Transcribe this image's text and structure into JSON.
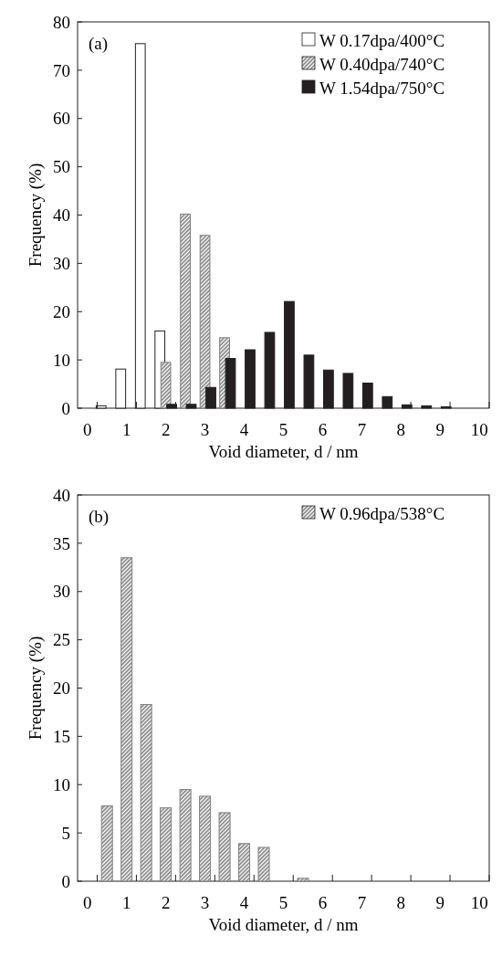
{
  "chart_data": [
    {
      "type": "bar",
      "categories": [
        "0",
        null,
        "1",
        null,
        "2",
        null,
        "3",
        null,
        "4",
        null,
        "5",
        null,
        "6",
        null,
        "7",
        null,
        "8",
        null,
        "9",
        null,
        "10"
      ],
      "xlabel": "Void diameter, d / nm",
      "ylabel": "Frequency (%)",
      "ylim": [
        0,
        80
      ],
      "yticks": [
        0,
        10,
        20,
        30,
        40,
        50,
        60,
        70,
        80
      ],
      "legend": "top right",
      "annotations": [
        "(a)"
      ],
      "series": [
        {
          "name": "W 0.17dpa/400°C",
          "color": "#ffffff",
          "values": [
            null,
            0.5,
            8.1,
            75.5,
            16,
            null,
            null,
            null,
            null,
            null,
            null,
            null,
            null,
            null,
            null,
            null,
            null,
            null,
            null,
            null,
            null
          ]
        },
        {
          "name": "W 0.40dpa/740°C",
          "color": "#808080",
          "values": [
            null,
            null,
            null,
            null,
            9.5,
            40.2,
            35.8,
            14.6,
            null,
            null,
            null,
            null,
            null,
            null,
            null,
            null,
            null,
            null,
            null,
            null,
            null
          ]
        },
        {
          "name": "W 1.54dpa/750°C",
          "color": "#231f20",
          "values": [
            null,
            null,
            null,
            null,
            0.8,
            0.8,
            4.3,
            10.3,
            12.1,
            15.7,
            22.1,
            11,
            7.9,
            7.2,
            5.2,
            2.4,
            0.7,
            0.5,
            0.3,
            null,
            null
          ]
        }
      ]
    },
    {
      "type": "bar",
      "categories": [
        "0",
        null,
        "1",
        null,
        "2",
        null,
        "3",
        null,
        "4",
        null,
        "5",
        null,
        "6",
        null,
        "7",
        null,
        "8",
        null,
        "9",
        null,
        "10"
      ],
      "xlabel": "Void diameter, d / nm",
      "ylabel": "Frequency (%)",
      "ylim": [
        0,
        40
      ],
      "yticks": [
        0,
        5,
        10,
        15,
        20,
        25,
        30,
        35,
        40
      ],
      "legend": "top right",
      "annotations": [
        "(b)"
      ],
      "series": [
        {
          "name": "W 0.96dpa/538°C",
          "color": "#808080",
          "values": [
            null,
            7.8,
            33.5,
            18.3,
            7.6,
            9.5,
            8.8,
            7.1,
            3.9,
            3.5,
            null,
            0.3,
            null,
            null,
            null,
            null,
            null,
            null,
            null,
            null,
            null
          ]
        }
      ]
    }
  ]
}
